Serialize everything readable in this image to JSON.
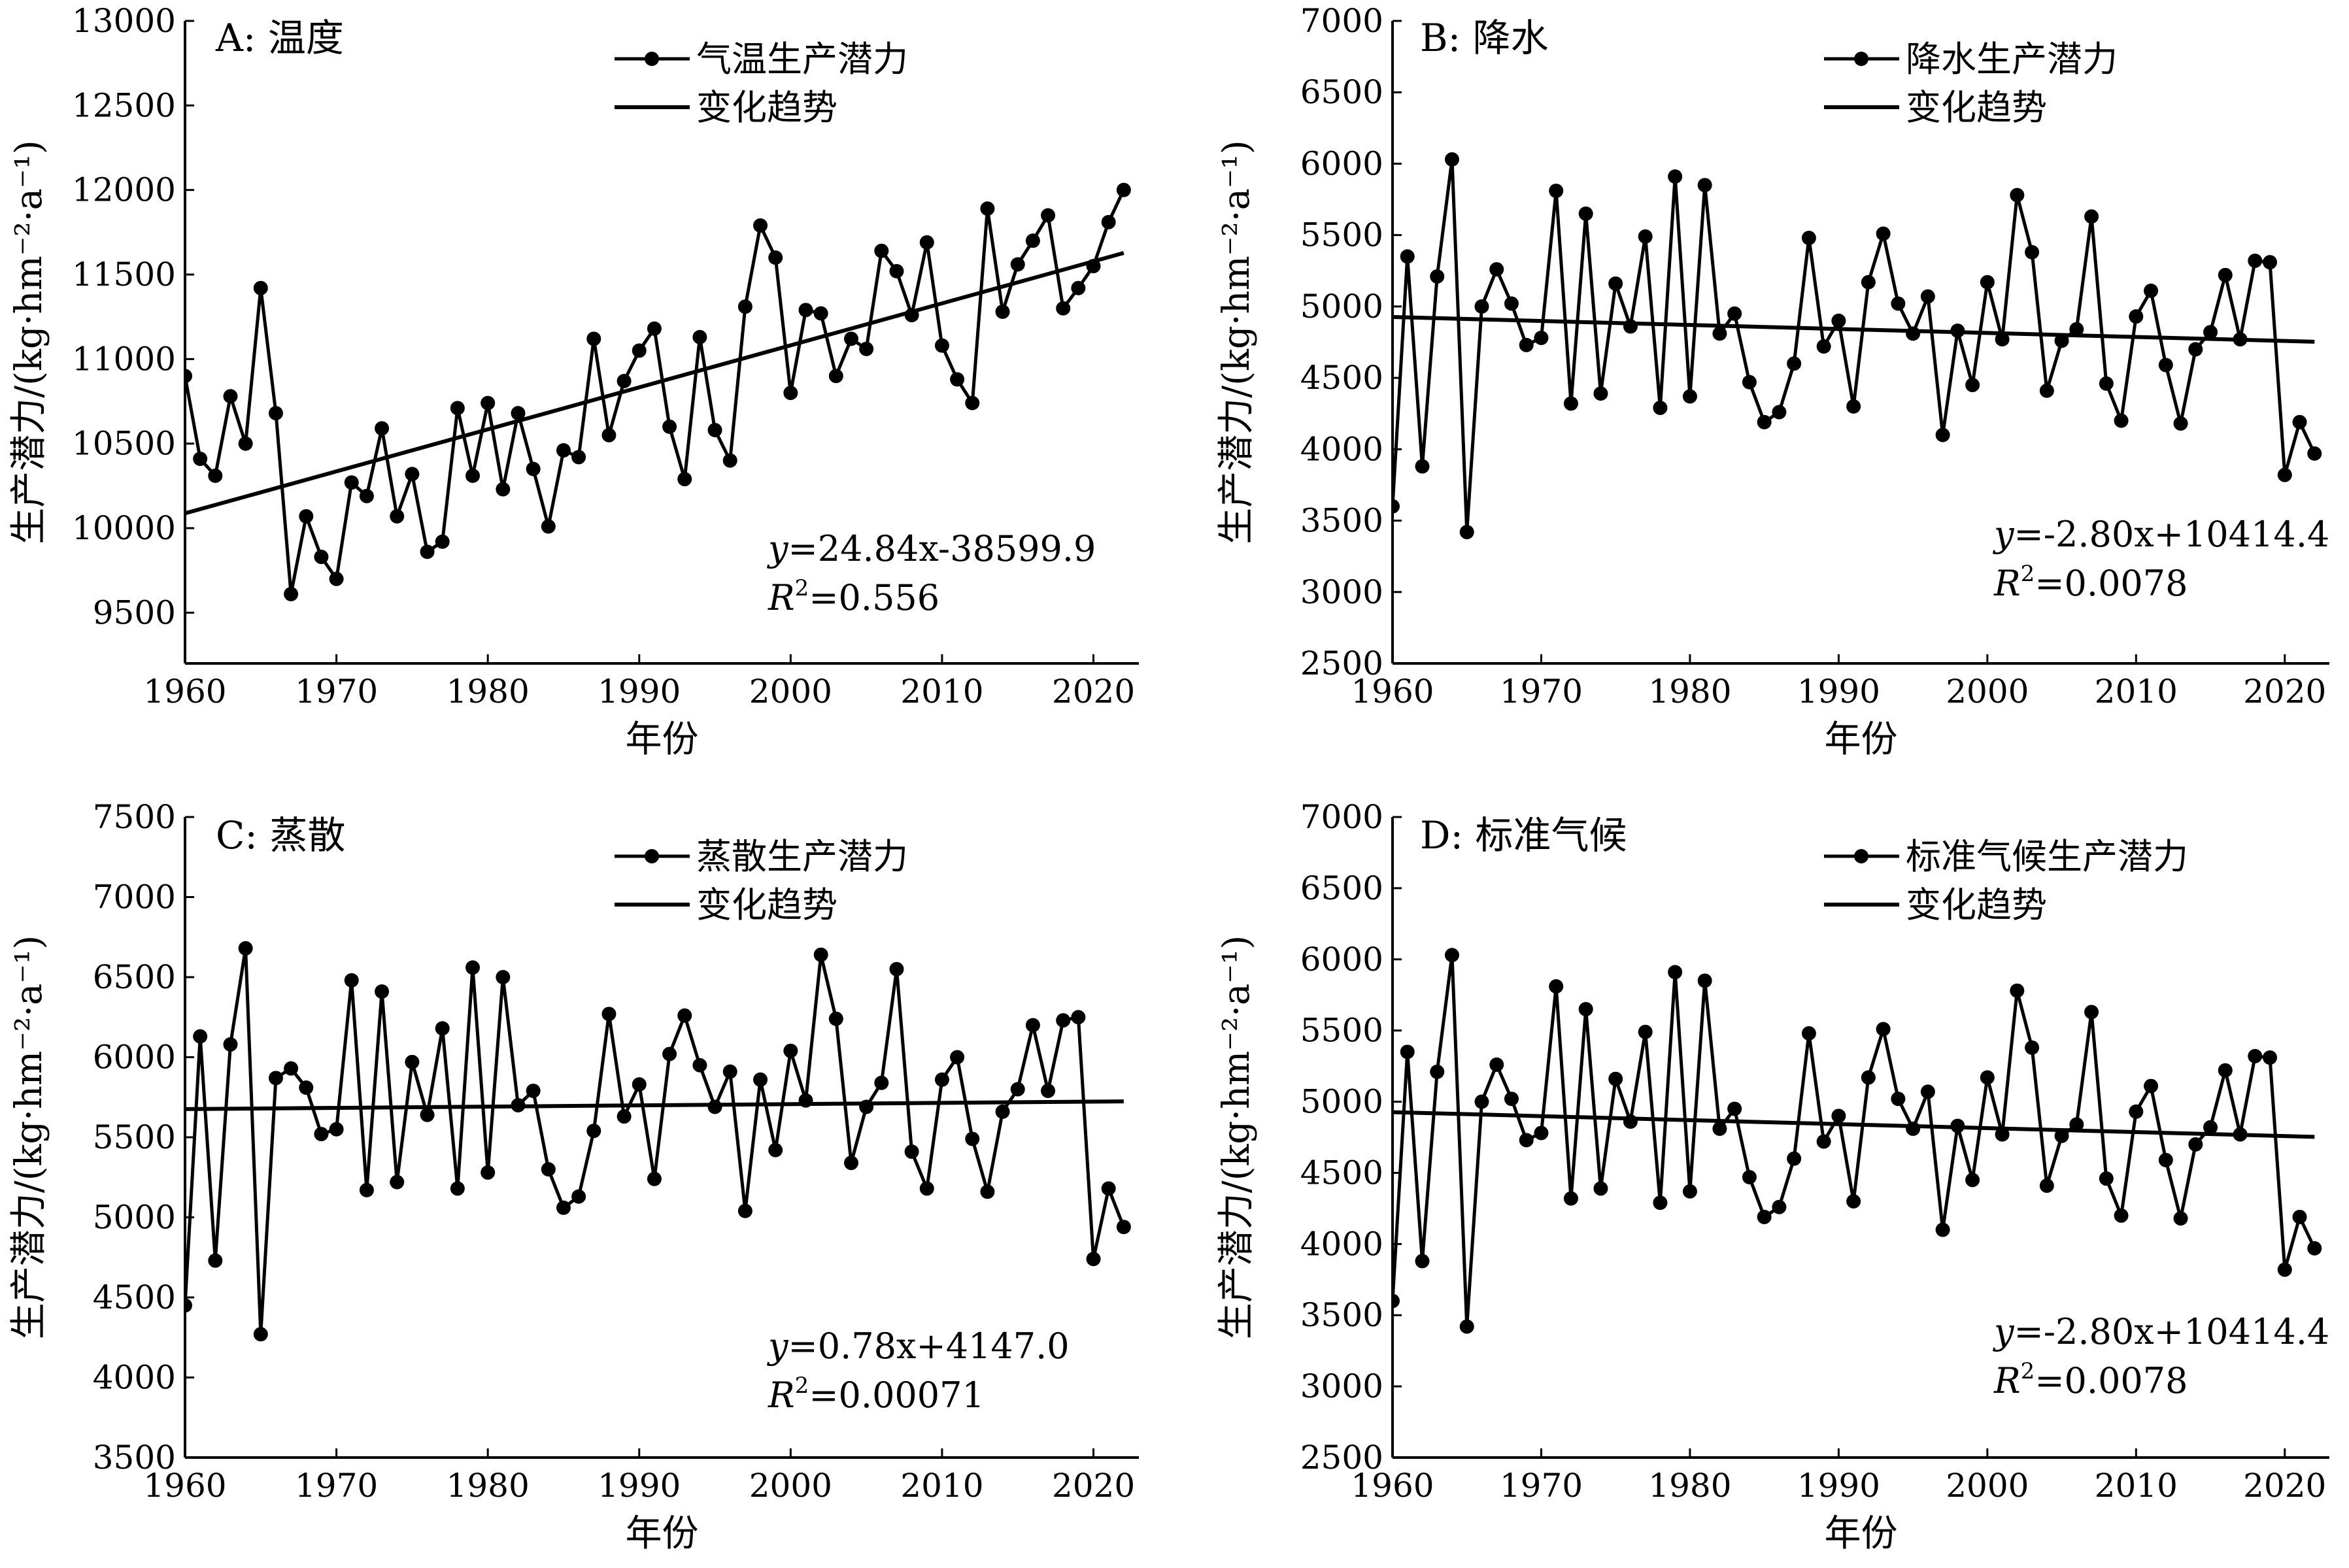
{
  "chart_data": [
    {
      "type": "line",
      "panel_label": "A: 温度",
      "xlabel": "年份",
      "ylabel": "生产潜力/(kg·hm⁻²·a⁻¹)",
      "xlim": [
        1960,
        2023
      ],
      "ylim": [
        9200,
        13000
      ],
      "yticks": [
        9500,
        10000,
        10500,
        11000,
        11500,
        12000,
        12500,
        13000
      ],
      "xticks": [
        1960,
        1970,
        1980,
        1990,
        2000,
        2010,
        2020
      ],
      "series": [
        {
          "name": "气温生产潜力",
          "x": [
            1960,
            1961,
            1962,
            1963,
            1964,
            1965,
            1966,
            1967,
            1968,
            1969,
            1970,
            1971,
            1972,
            1973,
            1974,
            1975,
            1976,
            1977,
            1978,
            1979,
            1980,
            1981,
            1982,
            1983,
            1984,
            1985,
            1986,
            1987,
            1988,
            1989,
            1990,
            1991,
            1992,
            1993,
            1994,
            1995,
            1996,
            1997,
            1998,
            1999,
            2000,
            2001,
            2002,
            2003,
            2004,
            2005,
            2006,
            2007,
            2008,
            2009,
            2010,
            2011,
            2012,
            2013,
            2014,
            2015,
            2016,
            2017,
            2018,
            2019,
            2020,
            2021,
            2022
          ],
          "y": [
            10900,
            10410,
            10310,
            10780,
            10500,
            11420,
            10680,
            9610,
            10070,
            9830,
            9700,
            10270,
            10190,
            10590,
            10070,
            10320,
            9860,
            9920,
            10710,
            10310,
            10740,
            10230,
            10680,
            10350,
            10010,
            10460,
            10420,
            11120,
            10550,
            10870,
            11050,
            11180,
            10600,
            10290,
            11130,
            10580,
            10400,
            11310,
            11790,
            11600,
            10800,
            11290,
            11270,
            10900,
            11120,
            11060,
            11640,
            11520,
            11260,
            11690,
            11080,
            10880,
            10740,
            11890,
            11280,
            11560,
            11700,
            11850,
            11300,
            11420,
            11550,
            11810,
            12000
          ]
        },
        {
          "name": "变化趋势",
          "x": [
            1960,
            2022
          ],
          "y": [
            10087.5,
            11627.6
          ]
        }
      ],
      "equation": {
        "y": "y",
        "rhs": "=24.84x-38599.9",
        "r2_label": "R",
        "r2_sup": "2",
        "r2_value": "=0.556"
      }
    },
    {
      "type": "line",
      "panel_label": "B: 降水",
      "xlabel": "年份",
      "ylabel": "生产潜力/(kg·hm⁻²·a⁻¹)",
      "xlim": [
        1960,
        2023
      ],
      "ylim": [
        2500,
        7000
      ],
      "yticks": [
        2500,
        3000,
        3500,
        4000,
        4500,
        5000,
        5500,
        6000,
        6500,
        7000
      ],
      "xticks": [
        1960,
        1970,
        1980,
        1990,
        2000,
        2010,
        2020
      ],
      "series": [
        {
          "name": "降水生产潜力",
          "x": [
            1960,
            1961,
            1962,
            1963,
            1964,
            1965,
            1966,
            1967,
            1968,
            1969,
            1970,
            1971,
            1972,
            1973,
            1974,
            1975,
            1976,
            1977,
            1978,
            1979,
            1980,
            1981,
            1982,
            1983,
            1984,
            1985,
            1986,
            1987,
            1988,
            1989,
            1990,
            1991,
            1992,
            1993,
            1994,
            1995,
            1996,
            1997,
            1998,
            1999,
            2000,
            2001,
            2002,
            2003,
            2004,
            2005,
            2006,
            2007,
            2008,
            2009,
            2010,
            2011,
            2012,
            2013,
            2014,
            2015,
            2016,
            2017,
            2018,
            2019,
            2020,
            2021,
            2022
          ],
          "y": [
            3600,
            5350,
            3880,
            5210,
            6030,
            3420,
            5000,
            5260,
            5020,
            4730,
            4780,
            5810,
            4320,
            5650,
            4390,
            5160,
            4860,
            5490,
            4290,
            5910,
            4370,
            5850,
            4810,
            4950,
            4470,
            4190,
            4260,
            4600,
            5480,
            4720,
            4900,
            4300,
            5170,
            5510,
            5020,
            4810,
            5070,
            4100,
            4830,
            4450,
            5170,
            4770,
            5780,
            5380,
            4410,
            4760,
            4840,
            5630,
            4460,
            4200,
            4930,
            5110,
            4590,
            4180,
            4700,
            4820,
            5220,
            4770,
            5320,
            5310,
            3820,
            4190,
            3970
          ]
        },
        {
          "name": "变化趋势",
          "x": [
            1960,
            2022
          ],
          "y": [
            4926.4,
            4752.8
          ]
        }
      ],
      "equation": {
        "y": "y",
        "rhs": "=-2.80x+10414.4",
        "r2_label": "R",
        "r2_sup": "2",
        "r2_value": "=0.0078"
      }
    },
    {
      "type": "line",
      "panel_label": "C: 蒸散",
      "xlabel": "年份",
      "ylabel": "生产潜力/(kg·hm⁻²·a⁻¹)",
      "xlim": [
        1960,
        2023
      ],
      "ylim": [
        3500,
        7500
      ],
      "yticks": [
        3500,
        4000,
        4500,
        5000,
        5500,
        6000,
        6500,
        7000,
        7500
      ],
      "xticks": [
        1960,
        1970,
        1980,
        1990,
        2000,
        2010,
        2020
      ],
      "series": [
        {
          "name": "蒸散生产潜力",
          "x": [
            1960,
            1961,
            1962,
            1963,
            1964,
            1965,
            1966,
            1967,
            1968,
            1969,
            1970,
            1971,
            1972,
            1973,
            1974,
            1975,
            1976,
            1977,
            1978,
            1979,
            1980,
            1981,
            1982,
            1983,
            1984,
            1985,
            1986,
            1987,
            1988,
            1989,
            1990,
            1991,
            1992,
            1993,
            1994,
            1995,
            1996,
            1997,
            1998,
            1999,
            2000,
            2001,
            2002,
            2003,
            2004,
            2005,
            2006,
            2007,
            2008,
            2009,
            2010,
            2011,
            2012,
            2013,
            2014,
            2015,
            2016,
            2017,
            2018,
            2019,
            2020,
            2021,
            2022
          ],
          "y": [
            4450,
            6130,
            4730,
            6080,
            6680,
            4270,
            5870,
            5930,
            5810,
            5520,
            5550,
            6480,
            5170,
            6410,
            5220,
            5970,
            5640,
            6180,
            5180,
            6560,
            5280,
            6500,
            5700,
            5790,
            5300,
            5060,
            5130,
            5540,
            6270,
            5630,
            5830,
            5240,
            6020,
            6260,
            5950,
            5690,
            5910,
            5040,
            5860,
            5420,
            6040,
            5730,
            6640,
            6240,
            5340,
            5690,
            5840,
            6550,
            5410,
            5180,
            5860,
            6000,
            5490,
            5160,
            5660,
            5800,
            6200,
            5790,
            6230,
            6250,
            4740,
            5180,
            4940
          ]
        },
        {
          "name": "变化趋势",
          "x": [
            1960,
            2022
          ],
          "y": [
            5675.8,
            5724.2
          ]
        }
      ],
      "equation": {
        "y": "y",
        "rhs": "=0.78x+4147.0",
        "r2_label": "R",
        "r2_sup": "2",
        "r2_value": "=0.00071"
      }
    },
    {
      "type": "line",
      "panel_label": "D: 标准气候",
      "xlabel": "年份",
      "ylabel": "生产潜力/(kg·hm⁻²·a⁻¹)",
      "xlim": [
        1960,
        2023
      ],
      "ylim": [
        2500,
        7000
      ],
      "yticks": [
        2500,
        3000,
        3500,
        4000,
        4500,
        5000,
        5500,
        6000,
        6500,
        7000
      ],
      "xticks": [
        1960,
        1970,
        1980,
        1990,
        2000,
        2010,
        2020
      ],
      "series": [
        {
          "name": "标准气候生产潜力",
          "x": [
            1960,
            1961,
            1962,
            1963,
            1964,
            1965,
            1966,
            1967,
            1968,
            1969,
            1970,
            1971,
            1972,
            1973,
            1974,
            1975,
            1976,
            1977,
            1978,
            1979,
            1980,
            1981,
            1982,
            1983,
            1984,
            1985,
            1986,
            1987,
            1988,
            1989,
            1990,
            1991,
            1992,
            1993,
            1994,
            1995,
            1996,
            1997,
            1998,
            1999,
            2000,
            2001,
            2002,
            2003,
            2004,
            2005,
            2006,
            2007,
            2008,
            2009,
            2010,
            2011,
            2012,
            2013,
            2014,
            2015,
            2016,
            2017,
            2018,
            2019,
            2020,
            2021,
            2022
          ],
          "y": [
            3600,
            5350,
            3880,
            5210,
            6030,
            3420,
            5000,
            5260,
            5020,
            4730,
            4780,
            5810,
            4320,
            5650,
            4390,
            5160,
            4860,
            5490,
            4290,
            5910,
            4370,
            5850,
            4810,
            4950,
            4470,
            4190,
            4260,
            4600,
            5480,
            4720,
            4900,
            4300,
            5170,
            5510,
            5020,
            4810,
            5070,
            4100,
            4830,
            4450,
            5170,
            4770,
            5780,
            5380,
            4410,
            4760,
            4840,
            5630,
            4460,
            4200,
            4930,
            5110,
            4590,
            4180,
            4700,
            4820,
            5220,
            4770,
            5320,
            5310,
            3820,
            4190,
            3970
          ]
        },
        {
          "name": "变化趋势",
          "x": [
            1960,
            2022
          ],
          "y": [
            4926.4,
            4752.8
          ]
        }
      ],
      "equation": {
        "y": "y",
        "rhs": "=-2.80x+10414.4",
        "r2_label": "R",
        "r2_sup": "2",
        "r2_value": "=0.0078"
      }
    }
  ]
}
